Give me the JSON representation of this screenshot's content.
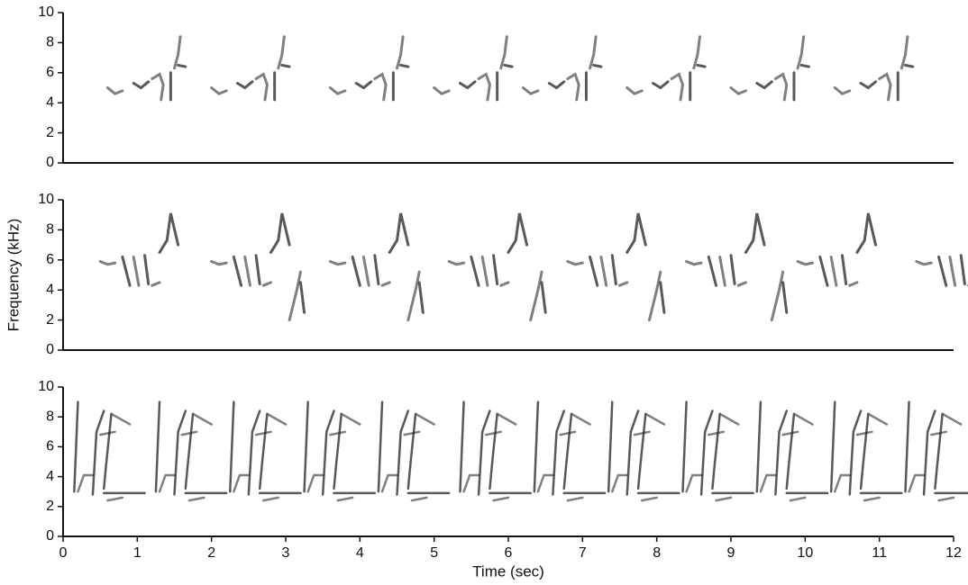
{
  "chart_data": [
    {
      "type": "spectrogram",
      "xlim": [
        0,
        12
      ],
      "ylim": [
        0,
        10
      ],
      "yticks": [
        0,
        2,
        4,
        6,
        8,
        10
      ]
    },
    {
      "type": "spectrogram",
      "xlim": [
        0,
        12
      ],
      "ylim": [
        0,
        10
      ],
      "yticks": [
        0,
        2,
        4,
        6,
        8,
        10
      ],
      "ylabel": "Frequency (kHz)"
    },
    {
      "type": "spectrogram",
      "xlim": [
        0,
        12
      ],
      "ylim": [
        0,
        10
      ],
      "yticks": [
        0,
        2,
        4,
        6,
        8,
        10
      ],
      "xticks": [
        0,
        1,
        2,
        3,
        4,
        5,
        6,
        7,
        8,
        9,
        10,
        11,
        12
      ],
      "xlabel": "Time (sec)"
    }
  ]
}
